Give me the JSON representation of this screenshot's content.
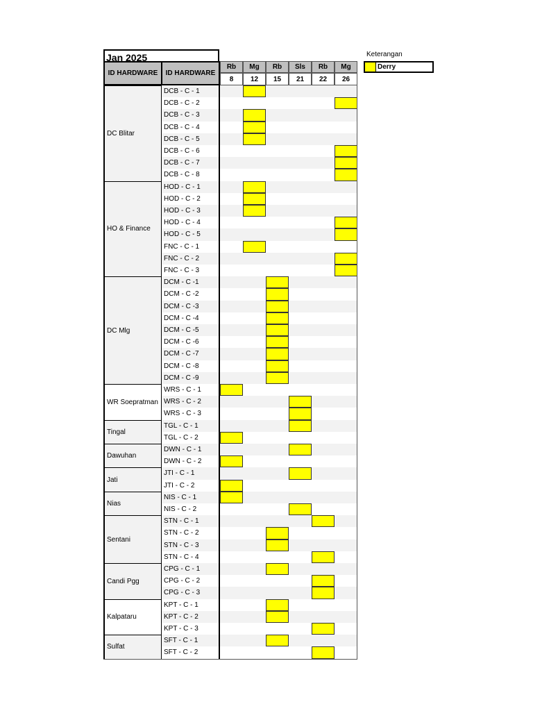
{
  "title": "Jan 2025",
  "headers": {
    "group_col": "ID HARDWARE",
    "id_col": "ID HARDWARE"
  },
  "days": [
    {
      "day": "Rb",
      "date": "8"
    },
    {
      "day": "Mg",
      "date": "12"
    },
    {
      "day": "Rb",
      "date": "15"
    },
    {
      "day": "Sls",
      "date": "21"
    },
    {
      "day": "Rb",
      "date": "22"
    },
    {
      "day": "Mg",
      "date": "26"
    }
  ],
  "legend": {
    "title": "Keterangan",
    "items": [
      {
        "label": "Derry",
        "color": "#ffff00"
      }
    ]
  },
  "colors": {
    "mark": "#ffff00",
    "header": "#bfbfbf",
    "stripe": "#f2f2f2"
  },
  "groups": [
    {
      "name": "DC Blitar",
      "bg": "gray",
      "rows": [
        {
          "id": "DCB - C - 1",
          "col": 1
        },
        {
          "id": "DCB - C - 2",
          "col": 5
        },
        {
          "id": "DCB - C - 3",
          "col": 1
        },
        {
          "id": "DCB - C - 4",
          "col": 1
        },
        {
          "id": "DCB - C - 5",
          "col": 1
        },
        {
          "id": "DCB - C - 6",
          "col": 5
        },
        {
          "id": "DCB - C - 7",
          "col": 5
        },
        {
          "id": "DCB - C - 8",
          "col": 5
        }
      ]
    },
    {
      "name": "HO & Finance",
      "bg": "gray",
      "rows": [
        {
          "id": "HOD - C - 1",
          "col": 1
        },
        {
          "id": "HOD - C - 2",
          "col": 1
        },
        {
          "id": "HOD - C - 3",
          "col": 1
        },
        {
          "id": "HOD - C - 4",
          "col": 5
        },
        {
          "id": "HOD - C - 5",
          "col": 5
        },
        {
          "id": "FNC - C - 1",
          "col": 1
        },
        {
          "id": "FNC - C - 2",
          "col": 5
        },
        {
          "id": "FNC - C - 3",
          "col": 5
        }
      ]
    },
    {
      "name": "DC Mlg",
      "bg": "gray",
      "rows": [
        {
          "id": "DCM - C -1",
          "col": 2
        },
        {
          "id": "DCM - C -2",
          "col": 2
        },
        {
          "id": "DCM - C -3",
          "col": 2
        },
        {
          "id": "DCM - C -4",
          "col": 2
        },
        {
          "id": "DCM - C -5",
          "col": 2
        },
        {
          "id": "DCM - C -6",
          "col": 2
        },
        {
          "id": "DCM - C -7",
          "col": 2
        },
        {
          "id": "DCM - C -8",
          "col": 2
        },
        {
          "id": "DCM - C -9",
          "col": 2
        }
      ]
    },
    {
      "name": "WR Soepratman",
      "bg": "white",
      "rows": [
        {
          "id": "WRS - C - 1",
          "col": 0
        },
        {
          "id": "WRS - C - 2",
          "col": 3
        },
        {
          "id": "WRS - C - 3",
          "col": 3
        }
      ]
    },
    {
      "name": "Tingal",
      "bg": "gray",
      "rows": [
        {
          "id": "TGL - C - 1",
          "col": 3
        },
        {
          "id": "TGL - C - 2",
          "col": 0
        }
      ]
    },
    {
      "name": "Dawuhan",
      "bg": "gray",
      "rows": [
        {
          "id": "DWN - C - 1",
          "col": 3
        },
        {
          "id": "DWN - C - 2",
          "col": 0
        }
      ]
    },
    {
      "name": "Jati",
      "bg": "gray",
      "rows": [
        {
          "id": "JTI - C - 1",
          "col": 3
        },
        {
          "id": "JTI - C - 2",
          "col": 0
        }
      ]
    },
    {
      "name": "Nias",
      "bg": "gray",
      "rows": [
        {
          "id": "NIS - C - 1",
          "col": 0
        },
        {
          "id": "NIS - C - 2",
          "col": 3
        }
      ]
    },
    {
      "name": "Sentani",
      "bg": "gray",
      "rows": [
        {
          "id": "STN - C - 1",
          "col": 4
        },
        {
          "id": "STN - C - 2",
          "col": 2
        },
        {
          "id": "STN - C - 3",
          "col": 2
        },
        {
          "id": "STN - C - 4",
          "col": 4
        }
      ]
    },
    {
      "name": "Candi Pgg",
      "bg": "gray",
      "rows": [
        {
          "id": "CPG - C - 1",
          "col": 2
        },
        {
          "id": "CPG - C - 2",
          "col": 4
        },
        {
          "id": "CPG - C - 3",
          "col": 4
        }
      ]
    },
    {
      "name": "Kalpataru",
      "bg": "white",
      "rows": [
        {
          "id": "KPT - C - 1",
          "col": 2
        },
        {
          "id": "KPT - C - 2",
          "col": 2
        },
        {
          "id": "KPT - C - 3",
          "col": 4
        }
      ]
    },
    {
      "name": "Sulfat",
      "bg": "gray",
      "rows": [
        {
          "id": "SFT - C - 1",
          "col": 2
        },
        {
          "id": "SFT - C - 2",
          "col": 4
        }
      ]
    }
  ]
}
